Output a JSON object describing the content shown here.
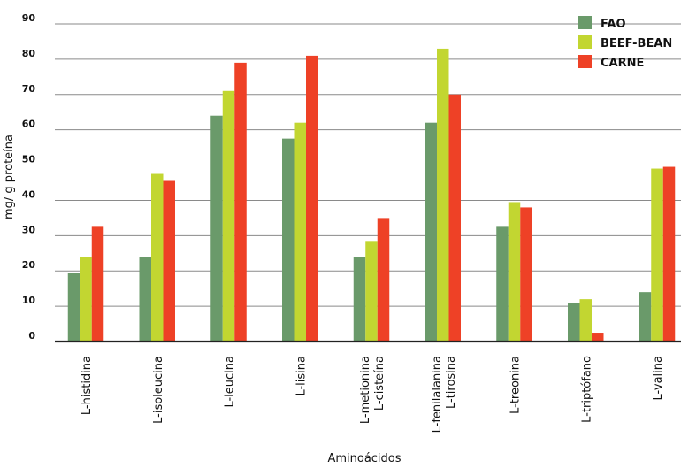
{
  "chart_data": {
    "type": "bar",
    "title": "",
    "xlabel": "Aminoácidos",
    "ylabel": "mg/ g proteína",
    "ylim": [
      0,
      90
    ],
    "yticks": [
      0,
      10,
      20,
      30,
      40,
      50,
      60,
      70,
      80,
      90
    ],
    "grid": true,
    "legend_position": "top-right",
    "categories": [
      [
        "L-histidina"
      ],
      [
        "L-isoleucina"
      ],
      [
        "L-leucina"
      ],
      [
        "L-lisina"
      ],
      [
        "L-metionina",
        "L-cisteína"
      ],
      [
        "L-fenilalanina",
        "L-tirosina"
      ],
      [
        "L-treonina"
      ],
      [
        "L-triptófano"
      ],
      [
        "L-valina"
      ]
    ],
    "series": [
      {
        "name": "FAO",
        "color": "#6a9a6a",
        "values": [
          19.5,
          24,
          64,
          57.5,
          24,
          62,
          32.5,
          11,
          14
        ]
      },
      {
        "name": "BEEF-BEAN",
        "color": "#c2d631",
        "values": [
          24,
          47.5,
          71,
          62,
          28.5,
          83,
          39.5,
          12,
          49
        ]
      },
      {
        "name": "CARNE",
        "color": "#ee4126",
        "values": [
          32.5,
          45.5,
          79,
          81,
          35,
          70,
          38,
          2.5,
          49.5
        ]
      }
    ]
  }
}
